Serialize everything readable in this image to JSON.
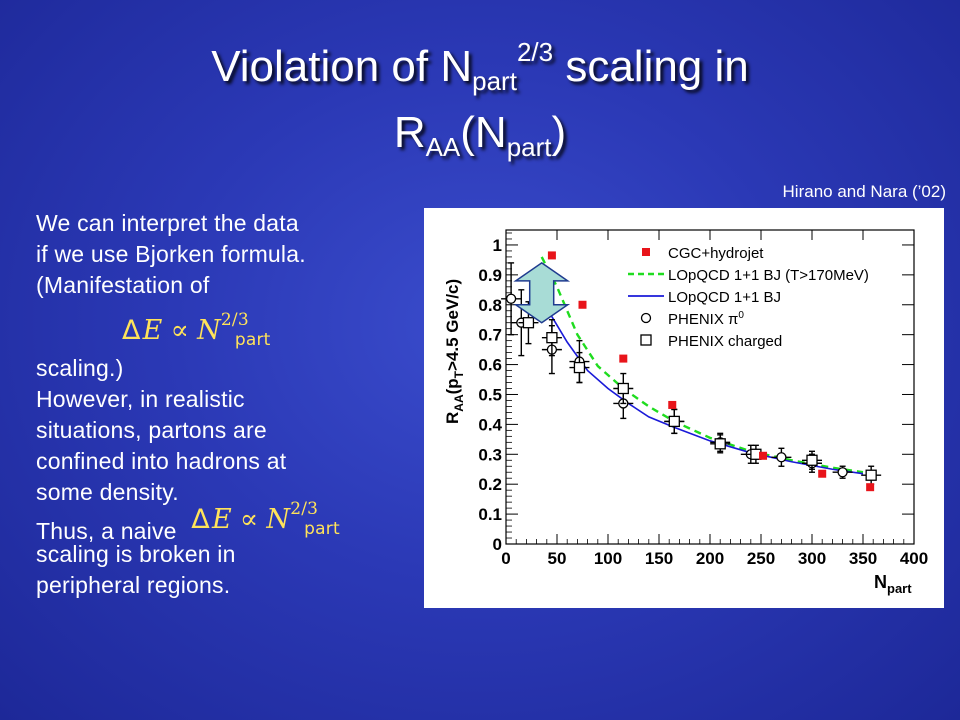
{
  "slide": {
    "title_main": "Violation of N",
    "title_sub1": "part",
    "title_sup": "2/3",
    "title_mid": " scaling in",
    "title_line2_r": "R",
    "title_line2_sub": "AA",
    "title_line2_open": "(N",
    "title_line2_sub2": "part",
    "title_line2_close": ")",
    "citation": "Hirano and Nara (’02)"
  },
  "text": {
    "l1": "We can interpret the data",
    "l2": "if we use Bjorken formula.",
    "l3": "(Manifestation of",
    "l4": "scaling.)",
    "l5": "However, in realistic",
    "l6": "situations, partons are",
    "l7": "confined into hadrons at",
    "l8": "some density.",
    "l9": "Thus, a naive",
    "l10": "scaling is broken in",
    "l11": "peripheral regions."
  },
  "formula": {
    "delta": "Δ",
    "e": "E",
    "prop": "∝",
    "n": "N",
    "sup": "2/3",
    "sub": "part"
  },
  "chart_data": {
    "type": "scatter",
    "xlim": [
      0,
      400
    ],
    "ylim": [
      0,
      1.05
    ],
    "xticks": [
      "0",
      "50",
      "100",
      "150",
      "200",
      "250",
      "300",
      "350",
      "400"
    ],
    "yticks": [
      "0",
      "0.1",
      "0.2",
      "0.3",
      "0.4",
      "0.5",
      "0.6",
      "0.7",
      "0.8",
      "0.9",
      "1"
    ],
    "xlabel_main": "N",
    "xlabel_sub": "part",
    "ylabel": "R_AA(p_T>4.5 GeV/c)",
    "ylabel_r": "R",
    "ylabel_aa": "AA",
    "ylabel_mid": "(p",
    "ylabel_t": "T",
    "ylabel_end": ">4.5 GeV/c)",
    "legend": [
      {
        "label": "CGC+hydrojet",
        "marker": "square-filled",
        "color": "#e8141a"
      },
      {
        "label": "LOpQCD 1+1 BJ (T>170MeV)",
        "marker": "dashed-line",
        "color": "#1fdc1f"
      },
      {
        "label": "LOpQCD 1+1 BJ",
        "marker": "solid-line",
        "color": "#1a1ad8"
      },
      {
        "label": "PHENIX π",
        "label_sup": "0",
        "marker": "circle-open",
        "color": "#000000"
      },
      {
        "label": "PHENIX charged",
        "marker": "square-open",
        "color": "#000000"
      }
    ],
    "series": [
      {
        "name": "CGC+hydrojet",
        "kind": "points",
        "x": [
          45,
          75,
          115,
          163,
          252,
          310,
          357
        ],
        "y": [
          0.965,
          0.8,
          0.62,
          0.465,
          0.295,
          0.235,
          0.19
        ]
      },
      {
        "name": "LOpQCD 1+1 BJ (T>170MeV)",
        "kind": "dashed",
        "x": [
          35,
          50,
          70,
          90,
          115,
          140,
          165,
          200,
          240,
          280,
          320,
          350
        ],
        "y": [
          0.96,
          0.86,
          0.7,
          0.595,
          0.52,
          0.46,
          0.41,
          0.355,
          0.31,
          0.28,
          0.255,
          0.24
        ]
      },
      {
        "name": "LOpQCD 1+1 BJ",
        "kind": "solid",
        "x": [
          30,
          45,
          60,
          80,
          100,
          120,
          140,
          165,
          200,
          240,
          280,
          320,
          350
        ],
        "y": [
          0.88,
          0.76,
          0.675,
          0.58,
          0.52,
          0.47,
          0.425,
          0.39,
          0.345,
          0.305,
          0.275,
          0.25,
          0.235
        ]
      },
      {
        "name": "PHENIX π0",
        "kind": "circles",
        "x": [
          5,
          15,
          45,
          72,
          115,
          165,
          210,
          240,
          270,
          300,
          330
        ],
        "y": [
          0.82,
          0.74,
          0.65,
          0.61,
          0.47,
          0.41,
          0.34,
          0.3,
          0.29,
          0.27,
          0.24
        ],
        "err": [
          0.12,
          0.11,
          0.08,
          0.07,
          0.05,
          0.04,
          0.03,
          0.03,
          0.03,
          0.03,
          0.02
        ]
      },
      {
        "name": "PHENIX charged",
        "kind": "squares",
        "x": [
          22,
          45,
          72,
          115,
          165,
          210,
          245,
          300,
          358
        ],
        "y": [
          0.74,
          0.69,
          0.59,
          0.52,
          0.41,
          0.335,
          0.3,
          0.28,
          0.23
        ],
        "err": [
          0.07,
          0.06,
          0.05,
          0.05,
          0.04,
          0.03,
          0.03,
          0.03,
          0.03
        ]
      }
    ],
    "arrow": {
      "x": 35,
      "y_top": 0.94,
      "y_bottom": 0.74
    }
  }
}
